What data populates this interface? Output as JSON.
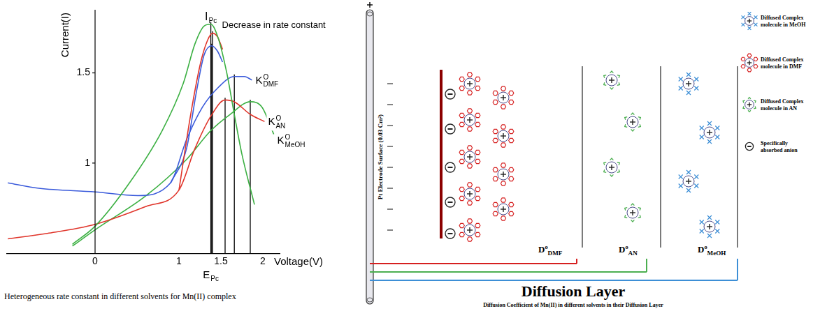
{
  "chart_data": {
    "type": "line",
    "caption": "Heterogeneous rate constant in different solvents for Mn(II) complex",
    "x_label": "Voltage(V)",
    "y_label": "Current(I)",
    "xlim": [
      -1.05,
      2.2
    ],
    "xticks": [
      0,
      1,
      1.5,
      2
    ],
    "ylim": [
      0.5,
      1.85
    ],
    "yticks": [
      1,
      1.5
    ],
    "grid": false,
    "peak_current_label": {
      "base": "I",
      "sub": "Pc"
    },
    "peak_potential_label": {
      "base": "E",
      "sub": "Pc"
    },
    "annotation": "Decrease in rate constant",
    "series": [
      {
        "color": "#3cb043",
        "x": [
          -0.27,
          0,
          0.41,
          0.8,
          1.05,
          1.19,
          1.3,
          1.38,
          1.47,
          1.57,
          1.66,
          1.75,
          1.9
        ],
        "values": [
          0.55,
          0.65,
          0.89,
          1.18,
          1.44,
          1.66,
          1.76,
          1.77,
          1.69,
          1.5,
          1.27,
          1.05,
          0.77
        ]
      },
      {
        "color": "#e0352b",
        "x": [
          1.0,
          1.14,
          1.26,
          1.34,
          1.4,
          1.46,
          1.52
        ],
        "values": [
          0.85,
          1.27,
          1.56,
          1.68,
          1.72,
          1.7,
          1.63
        ]
      },
      {
        "color": "#3b5bdb",
        "x": [
          0.9,
          1.09,
          1.21,
          1.3,
          1.39,
          1.46,
          1.52
        ],
        "values": [
          0.89,
          1.08,
          1.4,
          1.6,
          1.65,
          1.62,
          1.56
        ]
      },
      {
        "label": {
          "base": "K",
          "sup": "O",
          "sub": "DMF"
        },
        "color": "#3b5bdb",
        "x": [
          -1.04,
          -0.67,
          0,
          0.51,
          0.9,
          1.09,
          1.28,
          1.47,
          1.66,
          1.78,
          1.87
        ],
        "values": [
          0.89,
          0.86,
          0.84,
          0.82,
          0.89,
          1.13,
          1.31,
          1.42,
          1.48,
          1.48,
          1.46
        ]
      },
      {
        "label": {
          "base": "K",
          "sup": "O",
          "sub": "AN"
        },
        "color": "#e0352b",
        "x": [
          -1.04,
          -0.57,
          0,
          0.61,
          1.0,
          1.19,
          1.38,
          1.55,
          1.66,
          1.85,
          2.02
        ],
        "values": [
          0.58,
          0.61,
          0.66,
          0.76,
          0.85,
          1.08,
          1.26,
          1.35,
          1.34,
          1.27,
          1.23
        ]
      },
      {
        "label": {
          "base": "K",
          "sup": "O",
          "sub": "MeOH"
        },
        "color": "#3cb043",
        "x": [
          -0.27,
          0,
          0.61,
          1.09,
          1.38,
          1.61,
          1.85,
          1.99,
          2.13
        ],
        "values": [
          0.54,
          0.63,
          0.82,
          1.02,
          1.18,
          1.27,
          1.34,
          1.31,
          1.16
        ]
      }
    ]
  },
  "diagram": {
    "electrode_label": "Pt Electrode Surface (0.03 Cm²)",
    "layers": [
      {
        "label": {
          "base": "D",
          "sup": "o",
          "sub": "DMF"
        },
        "color": "#d62020",
        "marker": "hexagon"
      },
      {
        "label": {
          "base": "D",
          "sup": "o",
          "sub": "AN"
        },
        "color": "#4caf50",
        "marker": "chevron"
      },
      {
        "label": {
          "base": "D",
          "sup": "o",
          "sub": "MeOH"
        },
        "color": "#3d8fd6",
        "marker": "cross"
      }
    ],
    "legend": [
      {
        "text": "Diffused Complex molecule in MeOH",
        "color": "#3d8fd6",
        "marker": "cross"
      },
      {
        "text": "Diffused Complex molecule in DMF",
        "color": "#d62020",
        "marker": "hexagon"
      },
      {
        "text": "Diffused Complex molecule in AN",
        "color": "#4caf50",
        "marker": "chevron"
      },
      {
        "text": "Specifically absorbed anion",
        "color": "#222222",
        "marker": "anion"
      }
    ],
    "title": "Diffusion Layer",
    "caption": "Diffusion Coefficient of Mn(II) in different solvents in their Diffusion Layer"
  }
}
